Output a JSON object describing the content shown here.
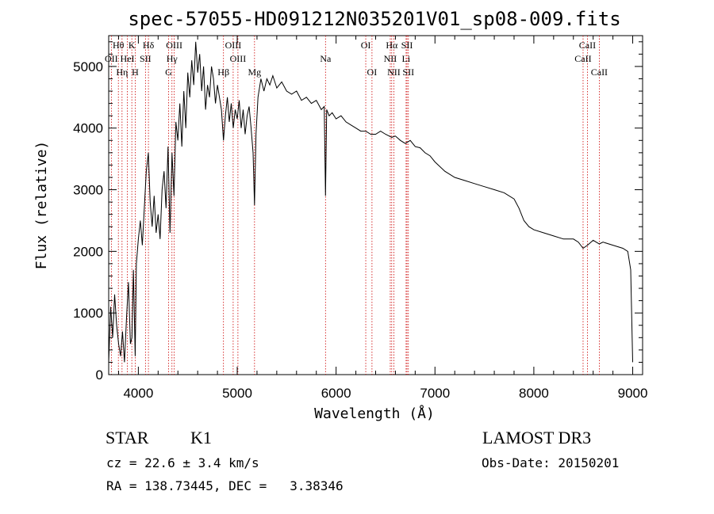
{
  "chart_data": {
    "type": "line",
    "title": "spec-57055-HD091212N035201V01_sp08-009.fits",
    "xlabel": "Wavelength (Å)",
    "ylabel": "Flux (relative)",
    "xlim": [
      3700,
      9100
    ],
    "ylim": [
      0,
      5500
    ],
    "xticks": [
      4000,
      5000,
      6000,
      7000,
      8000,
      9000
    ],
    "yticks": [
      0,
      1000,
      2000,
      3000,
      4000,
      5000
    ],
    "series": [
      {
        "name": "flux",
        "x": [
          3700,
          3720,
          3740,
          3760,
          3780,
          3800,
          3820,
          3840,
          3860,
          3880,
          3900,
          3920,
          3935,
          3950,
          3968,
          3980,
          4000,
          4020,
          4040,
          4060,
          4080,
          4101,
          4120,
          4140,
          4160,
          4180,
          4200,
          4220,
          4240,
          4260,
          4280,
          4300,
          4320,
          4340,
          4360,
          4380,
          4400,
          4420,
          4440,
          4460,
          4480,
          4500,
          4520,
          4540,
          4560,
          4580,
          4600,
          4620,
          4640,
          4660,
          4680,
          4700,
          4720,
          4740,
          4760,
          4780,
          4800,
          4820,
          4840,
          4861,
          4880,
          4900,
          4920,
          4940,
          4960,
          4980,
          5000,
          5020,
          5040,
          5060,
          5080,
          5100,
          5120,
          5140,
          5160,
          5175,
          5190,
          5210,
          5240,
          5270,
          5300,
          5330,
          5360,
          5400,
          5450,
          5500,
          5550,
          5600,
          5650,
          5700,
          5750,
          5800,
          5850,
          5880,
          5893,
          5905,
          5930,
          5960,
          6000,
          6050,
          6100,
          6150,
          6200,
          6250,
          6300,
          6350,
          6400,
          6450,
          6500,
          6563,
          6600,
          6650,
          6700,
          6750,
          6800,
          6850,
          6900,
          6950,
          7000,
          7100,
          7200,
          7300,
          7400,
          7500,
          7600,
          7700,
          7800,
          7850,
          7900,
          7950,
          8000,
          8100,
          8200,
          8300,
          8400,
          8450,
          8498,
          8542,
          8600,
          8662,
          8700,
          8800,
          8900,
          8950,
          8980,
          9000
        ],
        "values": [
          200,
          1100,
          600,
          1300,
          800,
          500,
          300,
          700,
          200,
          900,
          1500,
          500,
          600,
          1700,
          300,
          1800,
          2200,
          2500,
          2100,
          2700,
          3300,
          3600,
          2800,
          2400,
          2900,
          2300,
          2600,
          2200,
          3000,
          3300,
          2700,
          3700,
          2300,
          3600,
          2900,
          4100,
          3800,
          4400,
          3700,
          4600,
          4000,
          4900,
          4500,
          5100,
          4700,
          5400,
          4900,
          5200,
          4600,
          5000,
          4300,
          4700,
          4500,
          5000,
          4800,
          4400,
          4700,
          4500,
          4300,
          3800,
          4200,
          4500,
          4100,
          4400,
          4000,
          4300,
          4150,
          4450,
          4000,
          4300,
          3900,
          4200,
          4350,
          4000,
          3600,
          2750,
          3900,
          4500,
          4800,
          4600,
          4800,
          4700,
          4850,
          4650,
          4750,
          4600,
          4550,
          4600,
          4450,
          4500,
          4400,
          4450,
          4300,
          4350,
          2900,
          4300,
          4200,
          4250,
          4150,
          4200,
          4100,
          4050,
          4000,
          3950,
          3950,
          3900,
          3900,
          3950,
          3900,
          3850,
          3870,
          3800,
          3750,
          3800,
          3700,
          3680,
          3600,
          3550,
          3450,
          3300,
          3200,
          3150,
          3100,
          3050,
          3000,
          2950,
          2850,
          2700,
          2500,
          2400,
          2350,
          2300,
          2250,
          2200,
          2200,
          2150,
          2050,
          2100,
          2180,
          2120,
          2150,
          2100,
          2050,
          2000,
          1700,
          200
        ]
      }
    ],
    "lines": [
      {
        "name": "Hθ",
        "wl": 3798,
        "row": 1
      },
      {
        "name": "OII",
        "wl": 3727,
        "row": 2
      },
      {
        "name": "Hη",
        "wl": 3835,
        "row": 3
      },
      {
        "name": "HeI",
        "wl": 3889,
        "row": 2
      },
      {
        "name": "K",
        "wl": 3934,
        "row": 1
      },
      {
        "name": "H",
        "wl": 3968,
        "row": 3
      },
      {
        "name": "SII",
        "wl": 4072,
        "row": 2
      },
      {
        "name": "Hδ",
        "wl": 4102,
        "row": 1
      },
      {
        "name": "OIII",
        "wl": 4363,
        "row": 1
      },
      {
        "name": "Hγ",
        "wl": 4340,
        "row": 2
      },
      {
        "name": "G",
        "wl": 4305,
        "row": 3
      },
      {
        "name": "Hβ",
        "wl": 4861,
        "row": 3
      },
      {
        "name": "OIII",
        "wl": 4959,
        "row": 1
      },
      {
        "name": "OIII",
        "wl": 5007,
        "row": 2
      },
      {
        "name": "Mg",
        "wl": 5175,
        "row": 3
      },
      {
        "name": "Na",
        "wl": 5893,
        "row": 2
      },
      {
        "name": "OI",
        "wl": 6300,
        "row": 1
      },
      {
        "name": "OI",
        "wl": 6363,
        "row": 3
      },
      {
        "name": "Hα",
        "wl": 6563,
        "row": 1
      },
      {
        "name": "NII",
        "wl": 6548,
        "row": 2
      },
      {
        "name": "NII",
        "wl": 6584,
        "row": 3
      },
      {
        "name": "SII",
        "wl": 6717,
        "row": 1
      },
      {
        "name": "Li",
        "wl": 6708,
        "row": 2
      },
      {
        "name": "SII",
        "wl": 6731,
        "row": 3
      },
      {
        "name": "CaII",
        "wl": 8542,
        "row": 1
      },
      {
        "name": "CaII",
        "wl": 8498,
        "row": 2
      },
      {
        "name": "CaII",
        "wl": 8662,
        "row": 3
      }
    ]
  },
  "info": {
    "object_class": "STAR",
    "subclass": "K1",
    "survey": "LAMOST DR3",
    "cz": "cz = 22.6 ± 3.4 km/s",
    "obs_date": "Obs-Date: 20150201",
    "coords": "RA = 138.73445, DEC =   3.38346"
  },
  "colors": {
    "line_marker": "#cc0000",
    "spectrum": "#000000"
  }
}
